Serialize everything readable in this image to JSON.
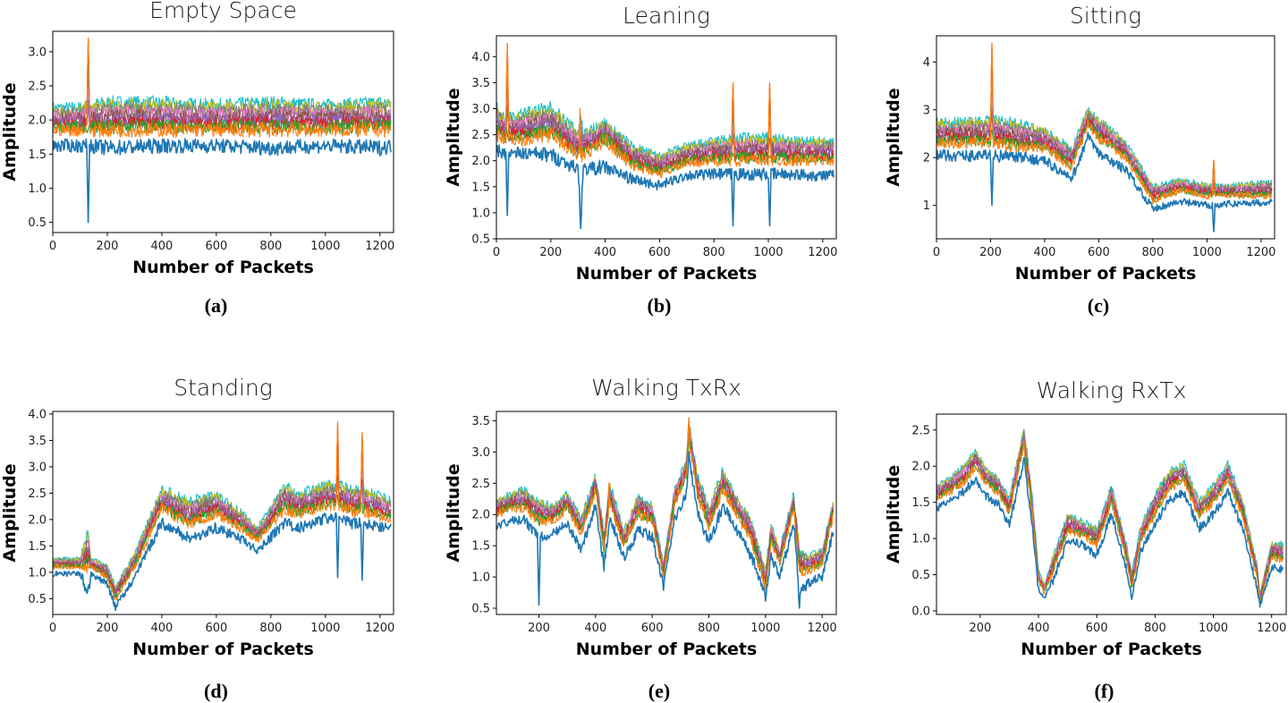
{
  "chart_data": [
    {
      "type": "line",
      "title": "Empty Space",
      "caption": "(a)",
      "xlabel": "Number of Packets",
      "ylabel": "Amplitude",
      "xlim": [
        0,
        1250
      ],
      "ylim": [
        0.35,
        3.3
      ],
      "xticks": [
        0,
        200,
        400,
        600,
        800,
        1000,
        1200
      ],
      "yticks": [
        0.5,
        1.0,
        1.5,
        2.0,
        2.5,
        3.0
      ],
      "ytick_labels": [
        "0.5",
        "1.0",
        "1.5",
        "2.0",
        "2.5",
        "3.0"
      ],
      "envelope": {
        "x": [
          0,
          100,
          125,
          130,
          135,
          200,
          400,
          600,
          800,
          1000,
          1200,
          1240
        ],
        "upper": [
          2.3,
          2.3,
          2.35,
          3.2,
          2.35,
          2.4,
          2.4,
          2.35,
          2.4,
          2.35,
          2.4,
          2.4
        ],
        "center": [
          1.85,
          1.85,
          1.85,
          1.85,
          1.85,
          1.85,
          1.85,
          1.85,
          1.85,
          1.85,
          1.85,
          1.85
        ],
        "lower": [
          1.5,
          1.5,
          1.5,
          0.5,
          1.5,
          1.45,
          1.5,
          1.5,
          1.45,
          1.5,
          1.45,
          1.5
        ]
      }
    },
    {
      "type": "line",
      "title": "Leaning",
      "caption": "(b)",
      "xlabel": "Number of Packets",
      "ylabel": "Amplitude",
      "xlim": [
        0,
        1250
      ],
      "ylim": [
        0.5,
        4.4
      ],
      "xticks": [
        0,
        200,
        400,
        600,
        800,
        1000,
        1200
      ],
      "yticks": [
        0.5,
        1.0,
        1.5,
        2.0,
        2.5,
        3.0,
        3.5,
        4.0
      ],
      "ytick_labels": [
        "0.5",
        "1.0",
        "1.5",
        "2.0",
        "2.5",
        "3.0",
        "3.5",
        "4.0"
      ],
      "envelope": {
        "x": [
          0,
          35,
          40,
          45,
          100,
          200,
          300,
          310,
          320,
          400,
          500,
          600,
          700,
          800,
          865,
          870,
          875,
          1000,
          1005,
          1010,
          1100,
          1240
        ],
        "upper": [
          3.2,
          3.0,
          4.25,
          3.0,
          3.1,
          3.2,
          2.7,
          3.1,
          2.7,
          2.8,
          2.4,
          2.2,
          2.4,
          2.5,
          2.6,
          3.5,
          2.6,
          2.6,
          3.5,
          2.6,
          2.5,
          2.5
        ],
        "center": [
          2.5,
          2.4,
          2.4,
          2.4,
          2.4,
          2.5,
          2.1,
          2.1,
          2.1,
          2.4,
          1.9,
          1.75,
          1.95,
          2.0,
          2.0,
          2.0,
          2.0,
          2.0,
          2.0,
          2.0,
          2.0,
          2.0
        ],
        "lower": [
          2.0,
          2.0,
          0.95,
          2.0,
          2.0,
          1.9,
          1.7,
          0.7,
          1.7,
          1.6,
          1.5,
          1.4,
          1.6,
          1.6,
          1.6,
          0.75,
          1.6,
          1.6,
          0.75,
          1.6,
          1.6,
          1.55
        ]
      }
    },
    {
      "type": "line",
      "title": "Sitting",
      "caption": "(c)",
      "xlabel": "Number of Packets",
      "ylabel": "Amplitude",
      "xlim": [
        0,
        1250
      ],
      "ylim": [
        0.3,
        4.55
      ],
      "xticks": [
        0,
        200,
        400,
        600,
        800,
        1000,
        1200
      ],
      "yticks": [
        1,
        2,
        3,
        4
      ],
      "ytick_labels": [
        "1",
        "2",
        "3",
        "4"
      ],
      "envelope": {
        "x": [
          0,
          100,
          200,
          205,
          210,
          300,
          400,
          500,
          560,
          600,
          700,
          800,
          900,
          1000,
          1020,
          1025,
          1030,
          1100,
          1240
        ],
        "upper": [
          2.9,
          2.9,
          3.0,
          4.4,
          3.0,
          2.9,
          2.7,
          2.3,
          3.1,
          2.9,
          2.4,
          1.5,
          1.6,
          1.5,
          1.5,
          1.95,
          1.5,
          1.5,
          1.6
        ],
        "center": [
          2.3,
          2.3,
          2.3,
          2.3,
          2.3,
          2.2,
          2.2,
          1.8,
          2.7,
          2.4,
          2.0,
          1.1,
          1.3,
          1.2,
          1.2,
          1.2,
          1.2,
          1.2,
          1.2
        ],
        "lower": [
          1.9,
          1.9,
          1.9,
          1.0,
          1.9,
          1.9,
          1.8,
          1.4,
          2.3,
          1.9,
          1.6,
          0.85,
          0.95,
          0.9,
          0.9,
          0.45,
          0.9,
          0.95,
          1.0
        ]
      }
    },
    {
      "type": "line",
      "title": "Standing",
      "caption": "(d)",
      "xlabel": "Number of Packets",
      "ylabel": "Amplitude",
      "xlim": [
        0,
        1250
      ],
      "ylim": [
        0.2,
        4.05
      ],
      "xticks": [
        0,
        200,
        400,
        600,
        800,
        1000,
        1200
      ],
      "yticks": [
        0.5,
        1.0,
        1.5,
        2.0,
        2.5,
        3.0,
        3.5,
        4.0
      ],
      "ytick_labels": [
        "0.5",
        "1.0",
        "1.5",
        "2.0",
        "2.5",
        "3.0",
        "3.5",
        "4.0"
      ],
      "envelope": {
        "x": [
          0,
          100,
          130,
          140,
          200,
          230,
          300,
          400,
          500,
          600,
          700,
          750,
          850,
          900,
          1000,
          1040,
          1045,
          1050,
          1100,
          1130,
          1135,
          1140,
          1240
        ],
        "upper": [
          1.3,
          1.3,
          2.0,
          1.3,
          1.2,
          0.8,
          1.4,
          2.7,
          2.5,
          2.6,
          2.2,
          1.9,
          2.8,
          2.6,
          2.8,
          2.8,
          3.85,
          2.8,
          2.7,
          2.7,
          3.65,
          2.7,
          2.5
        ],
        "center": [
          1.1,
          1.1,
          1.1,
          1.1,
          0.9,
          0.5,
          1.1,
          2.2,
          1.9,
          2.1,
          1.8,
          1.6,
          2.2,
          2.1,
          2.25,
          2.25,
          2.25,
          2.25,
          2.15,
          2.15,
          2.15,
          2.15,
          2.0
        ],
        "lower": [
          0.9,
          0.9,
          0.4,
          0.9,
          0.7,
          0.25,
          0.8,
          1.8,
          1.5,
          1.7,
          1.5,
          1.3,
          1.8,
          1.7,
          1.9,
          1.9,
          0.9,
          1.9,
          1.8,
          1.8,
          0.85,
          1.8,
          1.75
        ]
      }
    },
    {
      "type": "line",
      "title": "Walking TxRx",
      "caption": "(e)",
      "xlabel": "Number of Packets",
      "ylabel": "Amplitude",
      "xlim": [
        50,
        1250
      ],
      "ylim": [
        0.4,
        3.65
      ],
      "xticks": [
        200,
        400,
        600,
        800,
        1000,
        1200
      ],
      "yticks": [
        0.5,
        1.0,
        1.5,
        2.0,
        2.5,
        3.0,
        3.5
      ],
      "ytick_labels": [
        "0.5",
        "1.0",
        "1.5",
        "2.0",
        "2.5",
        "3.0",
        "3.5"
      ],
      "envelope": {
        "x": [
          50,
          100,
          150,
          195,
          200,
          205,
          250,
          300,
          350,
          400,
          430,
          450,
          500,
          550,
          600,
          640,
          680,
          720,
          730,
          760,
          800,
          850,
          900,
          950,
          1000,
          1020,
          1050,
          1100,
          1120,
          1150,
          1200,
          1240
        ],
        "upper": [
          2.3,
          2.4,
          2.5,
          2.3,
          2.3,
          2.3,
          2.2,
          2.4,
          2.0,
          2.7,
          1.8,
          2.6,
          1.8,
          2.4,
          2.2,
          1.3,
          2.5,
          2.9,
          3.55,
          2.7,
          2.2,
          2.8,
          2.3,
          2.0,
          1.2,
          1.9,
          1.5,
          2.4,
          1.5,
          1.4,
          1.5,
          2.3
        ],
        "center": [
          2.0,
          2.1,
          2.1,
          1.9,
          1.9,
          1.9,
          1.9,
          2.1,
          1.7,
          2.4,
          1.4,
          2.2,
          1.5,
          2.0,
          1.9,
          1.0,
          2.2,
          2.6,
          3.2,
          2.3,
          1.8,
          2.4,
          2.0,
          1.6,
          0.8,
          1.6,
          1.2,
          2.1,
          1.1,
          1.1,
          1.2,
          2.0
        ],
        "lower": [
          1.7,
          1.8,
          1.8,
          1.5,
          0.55,
          1.5,
          1.6,
          1.7,
          1.3,
          2.0,
          1.05,
          1.8,
          1.2,
          1.6,
          1.5,
          0.75,
          1.8,
          2.2,
          2.8,
          1.9,
          1.4,
          2.0,
          1.6,
          1.2,
          0.6,
          1.2,
          0.9,
          1.7,
          0.5,
          0.8,
          0.9,
          1.6
        ]
      }
    },
    {
      "type": "line",
      "title": "Walking RxTx",
      "caption": "(f)",
      "xlabel": "Number of Packets",
      "ylabel": "Amplitude",
      "xlim": [
        50,
        1250
      ],
      "ylim": [
        -0.05,
        2.72
      ],
      "xticks": [
        200,
        400,
        600,
        800,
        1000,
        1200
      ],
      "yticks": [
        0.0,
        0.5,
        1.0,
        1.5,
        2.0,
        2.5
      ],
      "ytick_labels": [
        "0.0",
        "0.5",
        "1.0",
        "1.5",
        "2.0",
        "2.5"
      ],
      "envelope": {
        "x": [
          50,
          100,
          150,
          185,
          220,
          260,
          300,
          350,
          380,
          400,
          420,
          450,
          500,
          550,
          600,
          650,
          700,
          720,
          750,
          800,
          850,
          900,
          950,
          1000,
          1050,
          1100,
          1150,
          1160,
          1200,
          1240
        ],
        "upper": [
          1.8,
          1.9,
          2.1,
          2.3,
          2.0,
          1.9,
          1.6,
          2.6,
          1.6,
          0.6,
          0.4,
          0.8,
          1.4,
          1.3,
          1.2,
          1.8,
          1.0,
          0.6,
          1.2,
          1.7,
          2.0,
          2.1,
          1.6,
          1.8,
          2.1,
          1.6,
          0.7,
          0.3,
          1.0,
          1.0
        ],
        "center": [
          1.55,
          1.65,
          1.8,
          2.0,
          1.75,
          1.65,
          1.35,
          2.3,
          1.3,
          0.4,
          0.25,
          0.55,
          1.1,
          1.05,
          0.9,
          1.5,
          0.75,
          0.3,
          0.95,
          1.35,
          1.7,
          1.8,
          1.3,
          1.5,
          1.8,
          1.3,
          0.45,
          0.1,
          0.75,
          0.7
        ],
        "lower": [
          1.35,
          1.45,
          1.6,
          1.75,
          1.5,
          1.4,
          1.1,
          2.0,
          1.0,
          0.25,
          0.15,
          0.35,
          0.9,
          0.85,
          0.7,
          1.25,
          0.55,
          0.15,
          0.75,
          1.1,
          1.45,
          1.55,
          1.05,
          1.25,
          1.55,
          1.05,
          0.25,
          0.05,
          0.55,
          0.5
        ]
      }
    }
  ],
  "series_colors": [
    "#1f77b4",
    "#ff7f0e",
    "#2ca02c",
    "#d62728",
    "#9467bd",
    "#8c564b",
    "#e377c2",
    "#7f7f7f",
    "#bcbd22",
    "#17becf"
  ]
}
